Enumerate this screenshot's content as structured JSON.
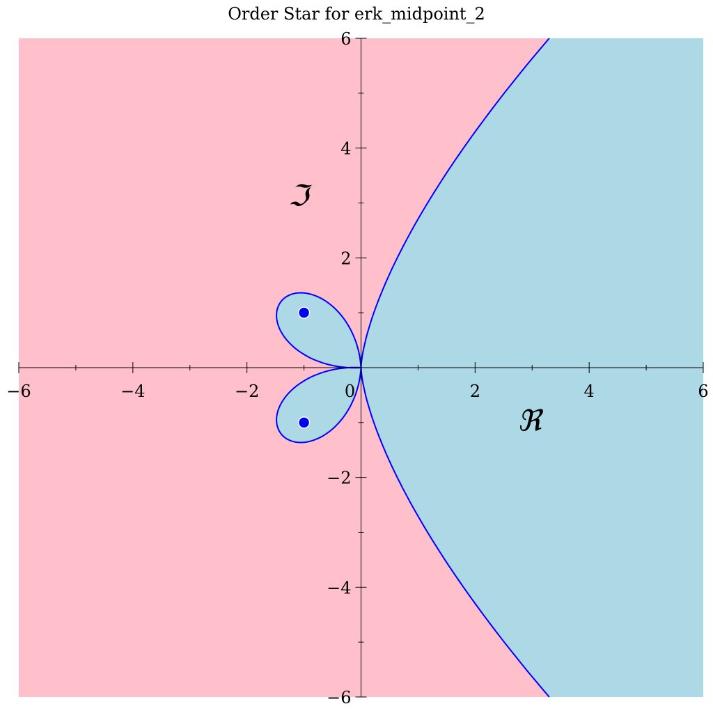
{
  "chart_data": {
    "type": "area",
    "title": "Order Star for erk_midpoint_2",
    "xlabel": "ℜ",
    "ylabel": "ℑ",
    "xlim": [
      -6,
      6
    ],
    "ylim": [
      -6,
      6
    ],
    "x_ticks": [
      -6,
      -4,
      -2,
      0,
      2,
      4,
      6
    ],
    "y_ticks": [
      -6,
      -4,
      -2,
      2,
      4,
      6
    ],
    "x_tick_labels": [
      "−6",
      "−4",
      "−2",
      "0",
      "2",
      "4",
      "6"
    ],
    "y_tick_labels": [
      "−6",
      "−4",
      "−2",
      "2",
      "4",
      "6"
    ],
    "colors": {
      "inside_region": "#ffc0cb",
      "outside_region": "#add8e6",
      "boundary": "#0000ff",
      "points": "#0000ff"
    },
    "marked_points": [
      {
        "x": -1,
        "y": 1
      },
      {
        "x": -1,
        "y": -1
      }
    ],
    "grid": false,
    "legend": "none"
  }
}
